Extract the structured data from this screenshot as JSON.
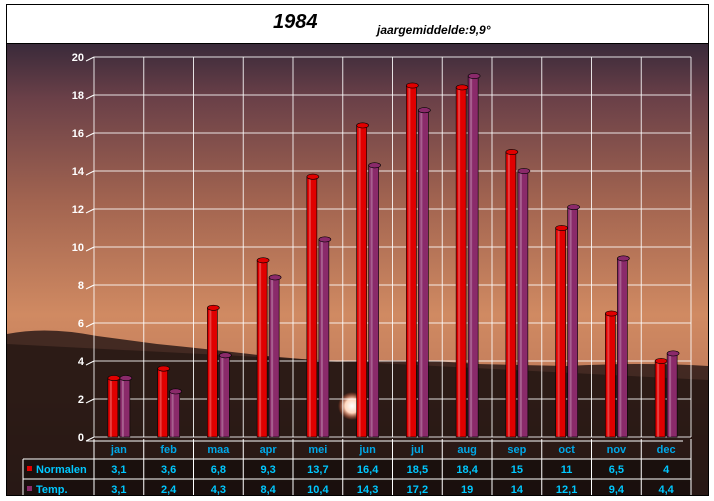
{
  "chart_data": {
    "type": "bar",
    "title": "1984",
    "subtitle": "jaargemiddelde:9,9°",
    "categories": [
      "jan",
      "feb",
      "maa",
      "apr",
      "mei",
      "jun",
      "jul",
      "aug",
      "sep",
      "oct",
      "nov",
      "dec"
    ],
    "series": [
      {
        "name": "Normalen",
        "color": "#e00000",
        "values": [
          3.1,
          3.6,
          6.8,
          9.3,
          13.7,
          16.4,
          18.5,
          18.4,
          15,
          11,
          6.5,
          4
        ],
        "labels": [
          "3,1",
          "3,6",
          "6,8",
          "9,3",
          "13,7",
          "16,4",
          "18,5",
          "18,4",
          "15",
          "11",
          "6,5",
          "4"
        ]
      },
      {
        "name": "Temp.",
        "color": "#8a2a6a",
        "values": [
          3.1,
          2.4,
          4.3,
          8.4,
          10.4,
          14.3,
          17.2,
          19,
          14,
          12.1,
          9.4,
          4.4
        ],
        "labels": [
          "3,1",
          "2,4",
          "4,3",
          "8,4",
          "10,4",
          "14,3",
          "17,2",
          "19",
          "14",
          "12,1",
          "9,4",
          "4,4"
        ]
      }
    ],
    "ylim": [
      0,
      20
    ],
    "yticks": [
      0,
      2,
      4,
      6,
      8,
      10,
      12,
      14,
      16,
      18,
      20
    ],
    "grid": true,
    "legend": "data-table-left",
    "colors": {
      "axis_text": "#ffffff",
      "category_text": "#00a8e8",
      "table_text": "#00c8ff"
    }
  }
}
